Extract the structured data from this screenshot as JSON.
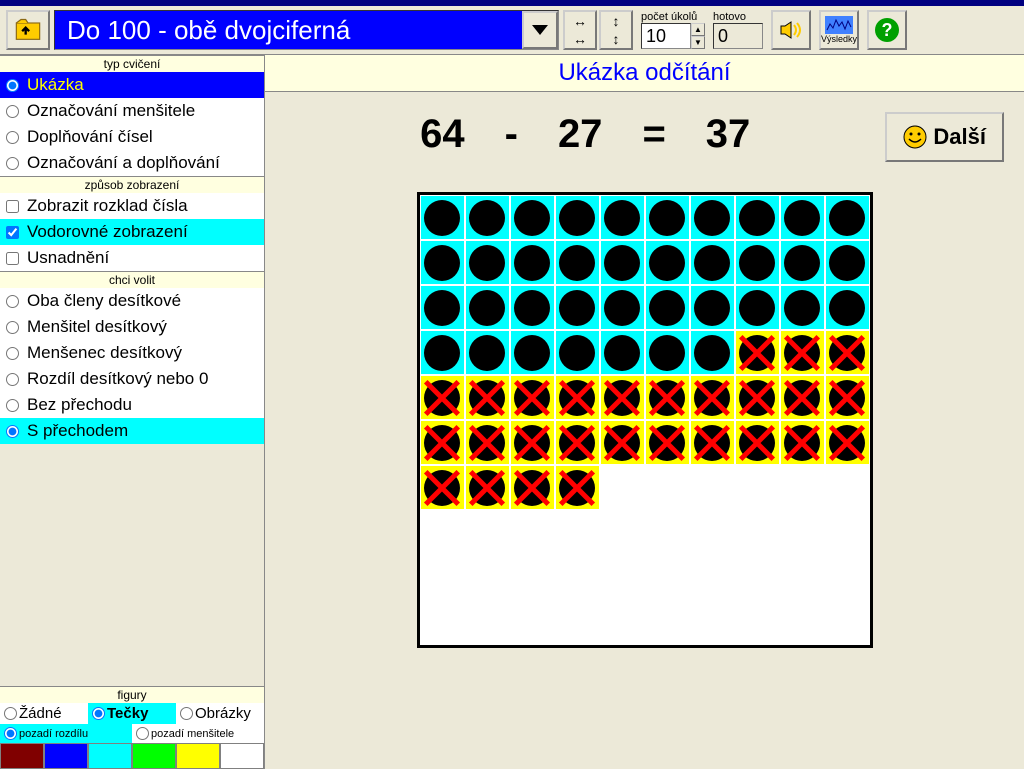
{
  "toolbar": {
    "dropdown_label": "Do 100 - obě dvojciferná",
    "counter1_label": "počet úkolů",
    "counter1_value": "10",
    "counter2_label": "hotovo",
    "counter2_value": "0",
    "results_label": "Výsledky"
  },
  "sidebar": {
    "sec1_title": "typ cvičení",
    "sec1_items": [
      "Ukázka",
      "Označování menšitele",
      "Doplňování čísel",
      "Označování a doplňování"
    ],
    "sec1_selected": 0,
    "sec2_title": "způsob zobrazení",
    "sec2_items": [
      "Zobrazit rozklad čísla",
      "Vodorovné zobrazení",
      "Usnadnění"
    ],
    "sec2_checked": [
      false,
      true,
      false
    ],
    "sec2_highlight": 1,
    "sec3_title": "chci volit",
    "sec3_items": [
      "Oba členy desítkové",
      "Menšitel desítkový",
      "Menšenec desítkový",
      "Rozdíl desítkový nebo 0",
      "Bez přechodu",
      "S přechodem"
    ],
    "sec3_selected": 5,
    "figury_title": "figury",
    "figury_items": [
      "Žádné",
      "Tečky",
      "Obrázky"
    ],
    "figury_selected": 1,
    "bg_items": [
      "pozadí rozdílu",
      "pozadí menšitele"
    ],
    "bg_selected": 0,
    "palette": [
      "#800000",
      "#0000ff",
      "#00ffff",
      "#00ff00",
      "#ffff00",
      "#ffffff"
    ]
  },
  "content": {
    "title": "Ukázka odčítání",
    "eq_a": "64",
    "eq_op": "-",
    "eq_b": "27",
    "eq_eq": "=",
    "eq_c": "37",
    "next_label": "Další",
    "grid": {
      "cols": 10,
      "rows": 10,
      "minuend": 64,
      "subtrahend": 27,
      "result_bg": "#00ffff",
      "subtrahend_bg": "#ffff00",
      "dot_color": "#000000",
      "cross_color": "#ff0000",
      "cell_size": 45
    }
  }
}
